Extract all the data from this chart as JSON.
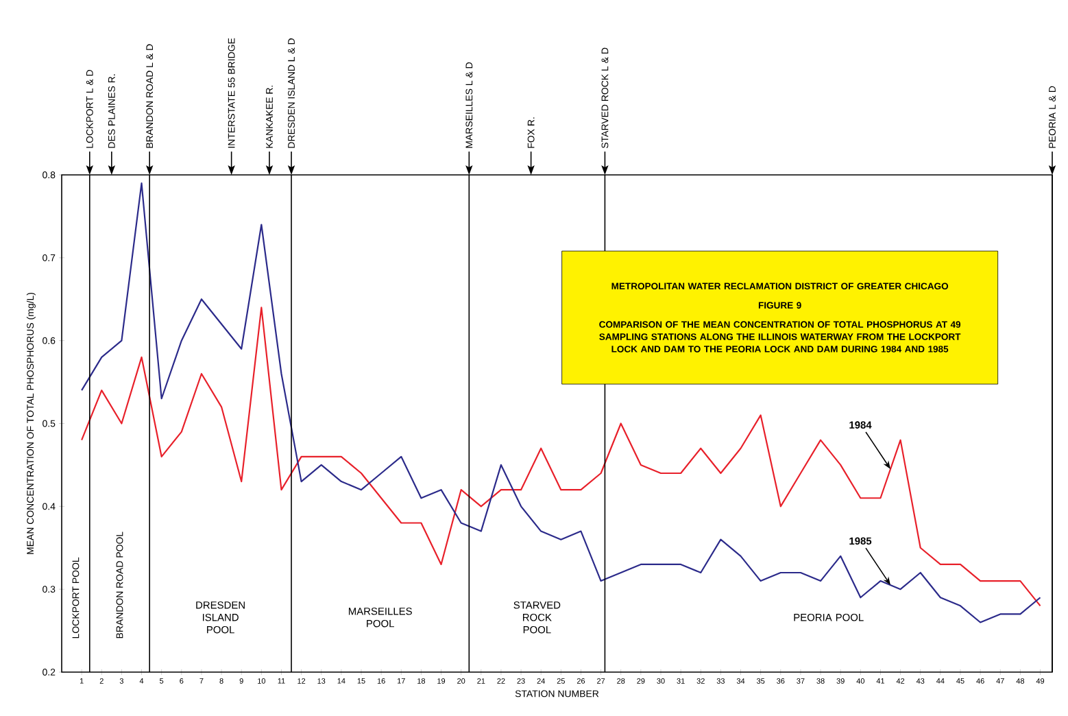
{
  "chart_data": {
    "type": "line",
    "title": "METROPOLITAN WATER RECLAMATION DISTRICT OF GREATER CHICAGO",
    "subtitle": "FIGURE 9",
    "xlabel": "STATION NUMBER",
    "ylabel": "MEAN CONCENTRATION OF TOTAL PHOSPHORUS (mg/L)",
    "x": [
      1,
      2,
      3,
      4,
      5,
      6,
      7,
      8,
      9,
      10,
      11,
      12,
      13,
      14,
      15,
      16,
      17,
      18,
      19,
      20,
      21,
      22,
      23,
      24,
      25,
      26,
      27,
      28,
      29,
      30,
      31,
      32,
      33,
      34,
      35,
      36,
      37,
      38,
      39,
      40,
      41,
      42,
      43,
      44,
      45,
      46,
      47,
      48,
      49
    ],
    "xlim": [
      0,
      49.6
    ],
    "xticks": [
      1,
      2,
      3,
      4,
      5,
      6,
      7,
      8,
      9,
      10,
      11,
      12,
      13,
      14,
      15,
      16,
      17,
      18,
      19,
      20,
      21,
      22,
      23,
      24,
      25,
      26,
      27,
      28,
      29,
      30,
      31,
      32,
      33,
      34,
      35,
      36,
      37,
      38,
      39,
      40,
      41,
      42,
      43,
      44,
      45,
      46,
      47,
      48,
      49
    ],
    "series": [
      {
        "name": "1984",
        "color": "#e8202a",
        "values": [
          0.48,
          0.54,
          0.5,
          0.58,
          0.46,
          0.49,
          0.56,
          0.52,
          0.43,
          0.64,
          0.42,
          0.46,
          0.46,
          0.46,
          0.44,
          0.41,
          0.38,
          0.38,
          0.33,
          0.42,
          0.4,
          0.42,
          0.42,
          0.47,
          0.42,
          0.42,
          0.44,
          0.5,
          0.45,
          0.44,
          0.44,
          0.47,
          0.44,
          0.47,
          0.51,
          0.4,
          0.44,
          0.48,
          0.45,
          0.41,
          0.41,
          0.48,
          0.35,
          0.33,
          0.33,
          0.31,
          0.31,
          0.31,
          0.28
        ]
      },
      {
        "name": "1985",
        "color": "#2b2a8a",
        "values": [
          0.54,
          0.58,
          0.6,
          0.79,
          0.53,
          0.6,
          0.65,
          0.62,
          0.59,
          0.74,
          0.56,
          0.43,
          0.45,
          0.43,
          0.42,
          0.44,
          0.46,
          0.41,
          0.42,
          0.38,
          0.37,
          0.45,
          0.4,
          0.37,
          0.36,
          0.37,
          0.31,
          0.32,
          0.33,
          0.33,
          0.33,
          0.32,
          0.36,
          0.34,
          0.31,
          0.32,
          0.32,
          0.31,
          0.34,
          0.29,
          0.31,
          0.3,
          0.32,
          0.29,
          0.28,
          0.26,
          0.27,
          0.27,
          0.29
        ]
      }
    ],
    "ylim": [
      0.2,
      0.8
    ],
    "yticks": [
      0.2,
      0.3,
      0.4,
      0.5,
      0.6,
      0.7,
      0.8
    ],
    "ref_lines": [
      {
        "axis": "x",
        "value": 1.4,
        "label": "LOCKPORT L & D",
        "line_style": "solid"
      },
      {
        "axis": "x",
        "value": 2.5,
        "label": "DES PLAINES R."
      },
      {
        "axis": "x",
        "value": 4.4,
        "label": "BRANDON ROAD L & D",
        "line_style": "solid"
      },
      {
        "axis": "x",
        "value": 8.5,
        "label": "INTERSTATE 55 BRIDGE"
      },
      {
        "axis": "x",
        "value": 10.4,
        "label": "KANKAKEE R."
      },
      {
        "axis": "x",
        "value": 11.5,
        "label": "DRESDEN ISLAND L & D",
        "line_style": "solid"
      },
      {
        "axis": "x",
        "value": 20.4,
        "label": "MARSEILLES L & D",
        "line_style": "solid"
      },
      {
        "axis": "x",
        "value": 23.5,
        "label": "FOX R."
      },
      {
        "axis": "x",
        "value": 27.2,
        "label": "STARVED ROCK L & D",
        "line_style": "solid"
      },
      {
        "axis": "x",
        "value": 49.6,
        "label": "PEORIA L & D",
        "line_style": "solid"
      }
    ],
    "annotations": [
      "COMPARISON OF THE MEAN CONCENTRATION OF TOTAL PHOSPHORUS AT 49 SAMPLING STATIONS ALONG THE ILLINOIS WATERWAY FROM THE LOCKPORT LOCK AND DAM TO THE PEORIA LOCK AND DAM DURING 1984 AND 1985",
      "LOCKPORT POOL",
      "BRANDON ROAD POOL",
      "DRESDEN ISLAND POOL",
      "MARSEILLES POOL",
      "STARVED ROCK POOL",
      "PEORIA POOL"
    ],
    "legend": false,
    "marker": "none",
    "line_style": "solid"
  }
}
